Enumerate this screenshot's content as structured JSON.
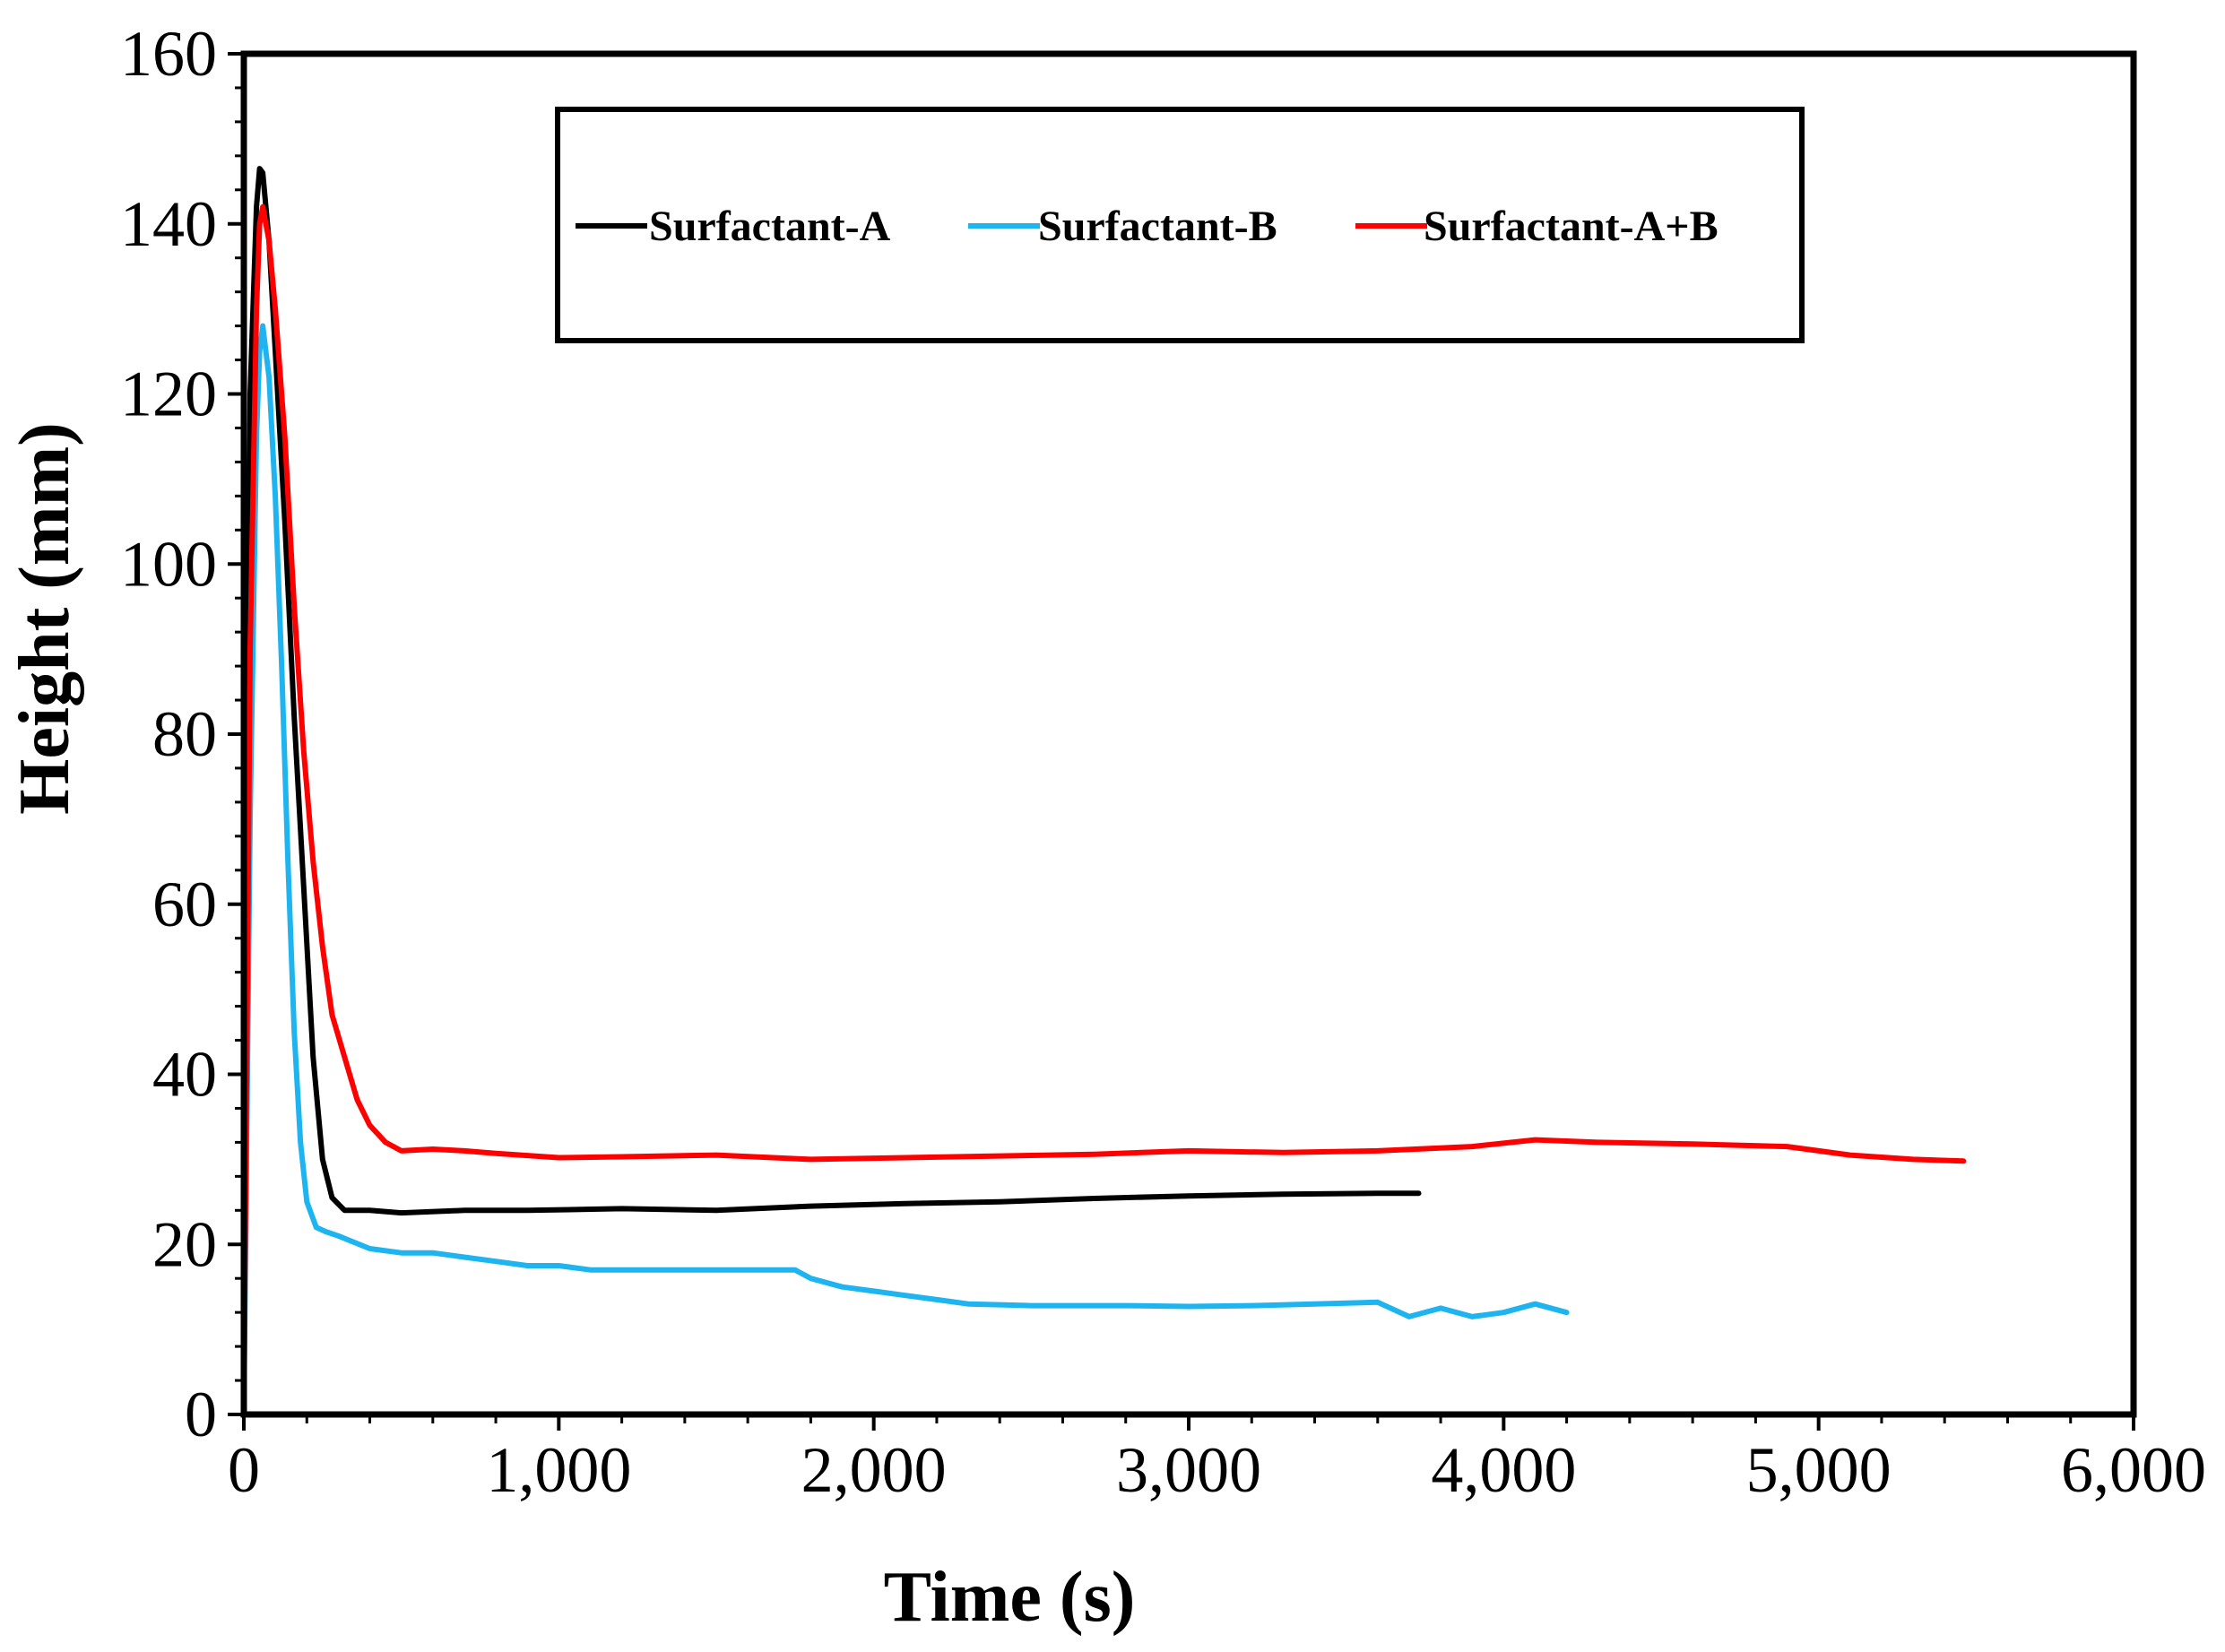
{
  "chart_data": {
    "type": "line",
    "title": "",
    "xlabel": "Time (s)",
    "ylabel": "Height (mm)",
    "xlim": [
      0,
      6000
    ],
    "ylim": [
      0,
      160
    ],
    "x_ticks": [
      0,
      1000,
      2000,
      3000,
      4000,
      5000,
      6000
    ],
    "x_tick_labels": [
      "0",
      "1,000",
      "2,000",
      "3,000",
      "4,000",
      "5,000",
      "6,000"
    ],
    "y_ticks": [
      0,
      20,
      40,
      60,
      80,
      100,
      120,
      140,
      160
    ],
    "y_tick_labels": [
      "0",
      "20",
      "40",
      "60",
      "80",
      "100",
      "120",
      "140",
      "160"
    ],
    "grid": false,
    "legend_position": "top-center",
    "series": [
      {
        "name": "Surfactant-A",
        "color": "#000000",
        "x": [
          0,
          20,
          40,
          50,
          60,
          80,
          100,
          130,
          160,
          190,
          220,
          250,
          280,
          320,
          400,
          500,
          700,
          900,
          1200,
          1500,
          1800,
          2100,
          2400,
          2700,
          3000,
          3300,
          3600,
          3730
        ],
        "y": [
          0,
          120,
          142,
          146.5,
          146,
          138,
          125,
          105,
          82,
          62,
          42,
          30,
          25.5,
          24,
          24,
          23.7,
          24,
          24,
          24.2,
          24,
          24.5,
          24.8,
          25,
          25.4,
          25.7,
          25.9,
          26,
          26
        ]
      },
      {
        "name": "Surfactant-B",
        "color": "#1EB4F0",
        "x": [
          0,
          20,
          40,
          50,
          60,
          80,
          100,
          120,
          140,
          160,
          180,
          200,
          230,
          260,
          300,
          400,
          500,
          600,
          700,
          800,
          900,
          1000,
          1100,
          1300,
          1500,
          1700,
          1750,
          1800,
          1900,
          2000,
          2100,
          2200,
          2300,
          2500,
          2800,
          3000,
          3200,
          3400,
          3600,
          3700,
          3800,
          3900,
          4000,
          4100,
          4200
        ],
        "y": [
          0,
          70,
          115,
          125,
          128,
          122,
          108,
          88,
          65,
          45,
          32,
          25,
          22,
          21.5,
          21,
          19.5,
          19,
          19,
          18.5,
          18,
          17.5,
          17.5,
          17,
          17,
          17,
          17,
          17,
          16,
          15,
          14.5,
          14,
          13.5,
          13,
          12.8,
          12.8,
          12.7,
          12.8,
          13,
          13.2,
          11.5,
          12.5,
          11.5,
          12,
          13,
          12
        ]
      },
      {
        "name": "Surfactant-A+B",
        "color": "#FF0000",
        "x": [
          0,
          20,
          40,
          50,
          60,
          80,
          100,
          130,
          160,
          190,
          220,
          250,
          280,
          320,
          360,
          400,
          450,
          500,
          600,
          700,
          800,
          1000,
          1200,
          1500,
          1800,
          2100,
          2400,
          2700,
          3000,
          3300,
          3600,
          3900,
          4100,
          4300,
          4600,
          4900,
          5100,
          5300,
          5460
        ],
        "y": [
          0,
          90,
          130,
          140,
          142,
          138,
          130,
          115,
          95,
          78,
          65,
          55,
          47,
          42,
          37,
          34,
          32,
          31,
          31.2,
          31,
          30.7,
          30.2,
          30.3,
          30.5,
          30,
          30.2,
          30.4,
          30.6,
          31,
          30.8,
          31,
          31.5,
          32.3,
          32,
          31.8,
          31.5,
          30.5,
          30,
          29.8
        ]
      }
    ]
  }
}
